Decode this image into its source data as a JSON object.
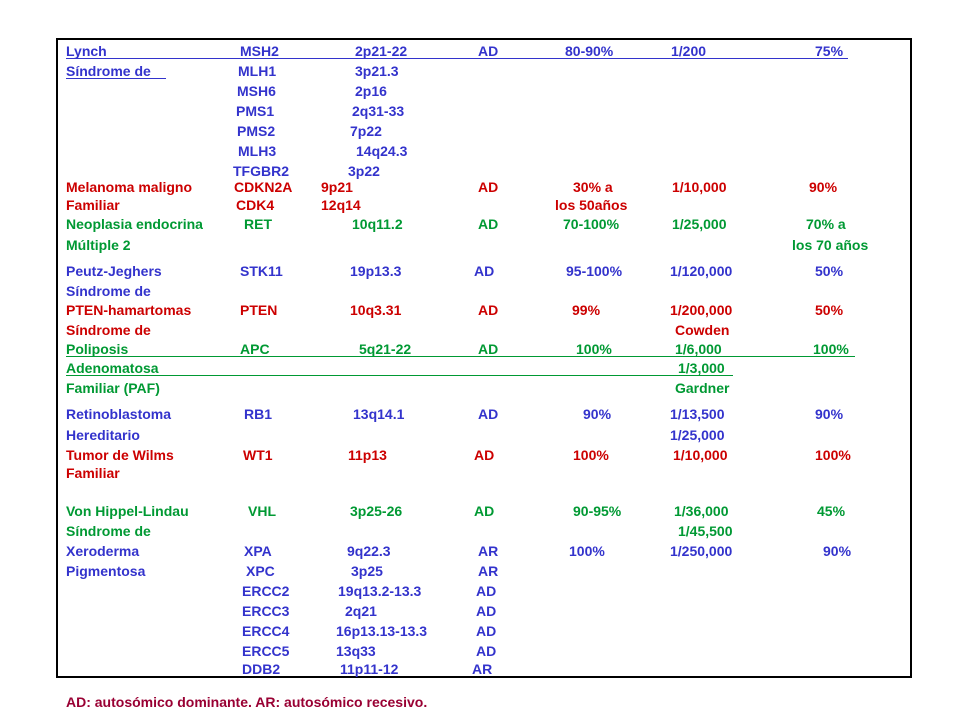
{
  "rows": [
    {
      "color": "blue",
      "cells": [
        "Lynch",
        "MSH2",
        "2p21-22",
        "AD",
        "80-90%",
        "1/200",
        "75%"
      ]
    },
    {
      "color": "blue",
      "cells": [
        "Síndrome de",
        "MLH1",
        "3p21.3",
        "",
        "",
        "",
        ""
      ]
    },
    {
      "color": "blue",
      "cells": [
        "",
        "MSH6",
        "2p16",
        "",
        "",
        "",
        ""
      ]
    },
    {
      "color": "blue",
      "cells": [
        "",
        "PMS1",
        "2q31-33",
        "",
        "",
        "",
        ""
      ]
    },
    {
      "color": "blue",
      "cells": [
        "",
        "PMS2",
        "7p22",
        "",
        "",
        "",
        ""
      ]
    },
    {
      "color": "blue",
      "cells": [
        "",
        "MLH3",
        "14q24.3",
        "",
        "",
        "",
        ""
      ]
    },
    {
      "color": "blue",
      "cells": [
        "",
        "TFGBR2",
        "3p22",
        "",
        "",
        "",
        ""
      ]
    },
    {
      "color": "red",
      "cells": [
        "Melanoma maligno",
        "CDKN2A",
        "9p21",
        "AD",
        "30% a",
        "1/10,000",
        "90%"
      ]
    },
    {
      "color": "red",
      "cells": [
        "Familiar",
        "CDK4",
        "12q14",
        "",
        "los 50años",
        "",
        ""
      ]
    },
    {
      "color": "green",
      "cells": [
        "Neoplasia endocrina",
        "RET",
        "10q11.2",
        "AD",
        "70-100%",
        "1/25,000",
        "70% a"
      ]
    },
    {
      "color": "green",
      "cells": [
        "Múltiple 2",
        "",
        "",
        "",
        "",
        "",
        "los 70 años"
      ]
    },
    {
      "color": "blue",
      "cells": [
        "Peutz-Jeghers",
        "STK11",
        "19p13.3",
        "AD",
        "95-100%",
        "1/120,000",
        "50%"
      ]
    },
    {
      "color": "blue",
      "cells": [
        "Síndrome de",
        "",
        "",
        "",
        "",
        "",
        ""
      ]
    },
    {
      "color": "red",
      "cells": [
        "PTEN-hamartomas",
        "PTEN",
        "10q3.31",
        "AD",
        "99%",
        "1/200,000",
        "50%"
      ]
    },
    {
      "color": "red",
      "cells": [
        "Síndrome de",
        "",
        "",
        "",
        "",
        "Cowden",
        ""
      ]
    },
    {
      "color": "green",
      "cells": [
        "Poliposis",
        "APC",
        "5q21-22",
        "AD",
        "100%",
        "1/6,000",
        "100%"
      ]
    },
    {
      "color": "green",
      "cells": [
        "Adenomatosa",
        "",
        "",
        "",
        "",
        "1/3,000",
        ""
      ]
    },
    {
      "color": "green",
      "cells": [
        "Familiar (PAF)",
        "",
        "",
        "",
        "",
        "Gardner",
        ""
      ]
    },
    {
      "color": "blue",
      "cells": [
        "Retinoblastoma",
        "RB1",
        "13q14.1",
        "AD",
        "90%",
        "1/13,500",
        "90%"
      ]
    },
    {
      "color": "blue",
      "cells": [
        "Hereditario",
        "",
        "",
        "",
        "",
        "1/25,000",
        ""
      ]
    },
    {
      "color": "red",
      "cells": [
        "Tumor de Wilms",
        "WT1",
        "11p13",
        "AD",
        "100%",
        "1/10,000",
        "100%"
      ]
    },
    {
      "color": "red",
      "cells": [
        "Familiar",
        "",
        "",
        "",
        "",
        "",
        ""
      ]
    },
    {
      "color": "green",
      "cells": [
        "Von Hippel-Lindau",
        "VHL",
        "3p25-26",
        "AD",
        "90-95%",
        "1/36,000",
        "45%"
      ]
    },
    {
      "color": "green",
      "cells": [
        "Síndrome de",
        "",
        "",
        "",
        "",
        "1/45,500",
        ""
      ]
    },
    {
      "color": "blue",
      "cells": [
        "Xeroderma",
        "XPA",
        "9q22.3",
        "AR",
        "100%",
        "1/250,000",
        "90%"
      ]
    },
    {
      "color": "blue",
      "cells": [
        "Pigmentosa",
        "XPC",
        "3p25",
        "AR",
        "",
        "",
        ""
      ]
    },
    {
      "color": "blue",
      "cells": [
        "",
        "ERCC2",
        "19q13.2-13.3",
        "AD",
        "",
        "",
        ""
      ]
    },
    {
      "color": "blue",
      "cells": [
        "",
        "ERCC3",
        "2q21",
        "AD",
        "",
        "",
        ""
      ]
    },
    {
      "color": "blue",
      "cells": [
        "",
        "ERCC4",
        "16p13.13-13.3",
        "AD",
        "",
        "",
        ""
      ]
    },
    {
      "color": "blue",
      "cells": [
        "",
        "ERCC5",
        "13q33",
        "AD",
        "",
        "",
        ""
      ]
    },
    {
      "color": "blue",
      "cells": [
        "",
        "DDB2",
        "11p11-12",
        "AR",
        "",
        "",
        ""
      ]
    }
  ],
  "footnote": "AD: autosómico dominante. AR: autosómico recesivo."
}
